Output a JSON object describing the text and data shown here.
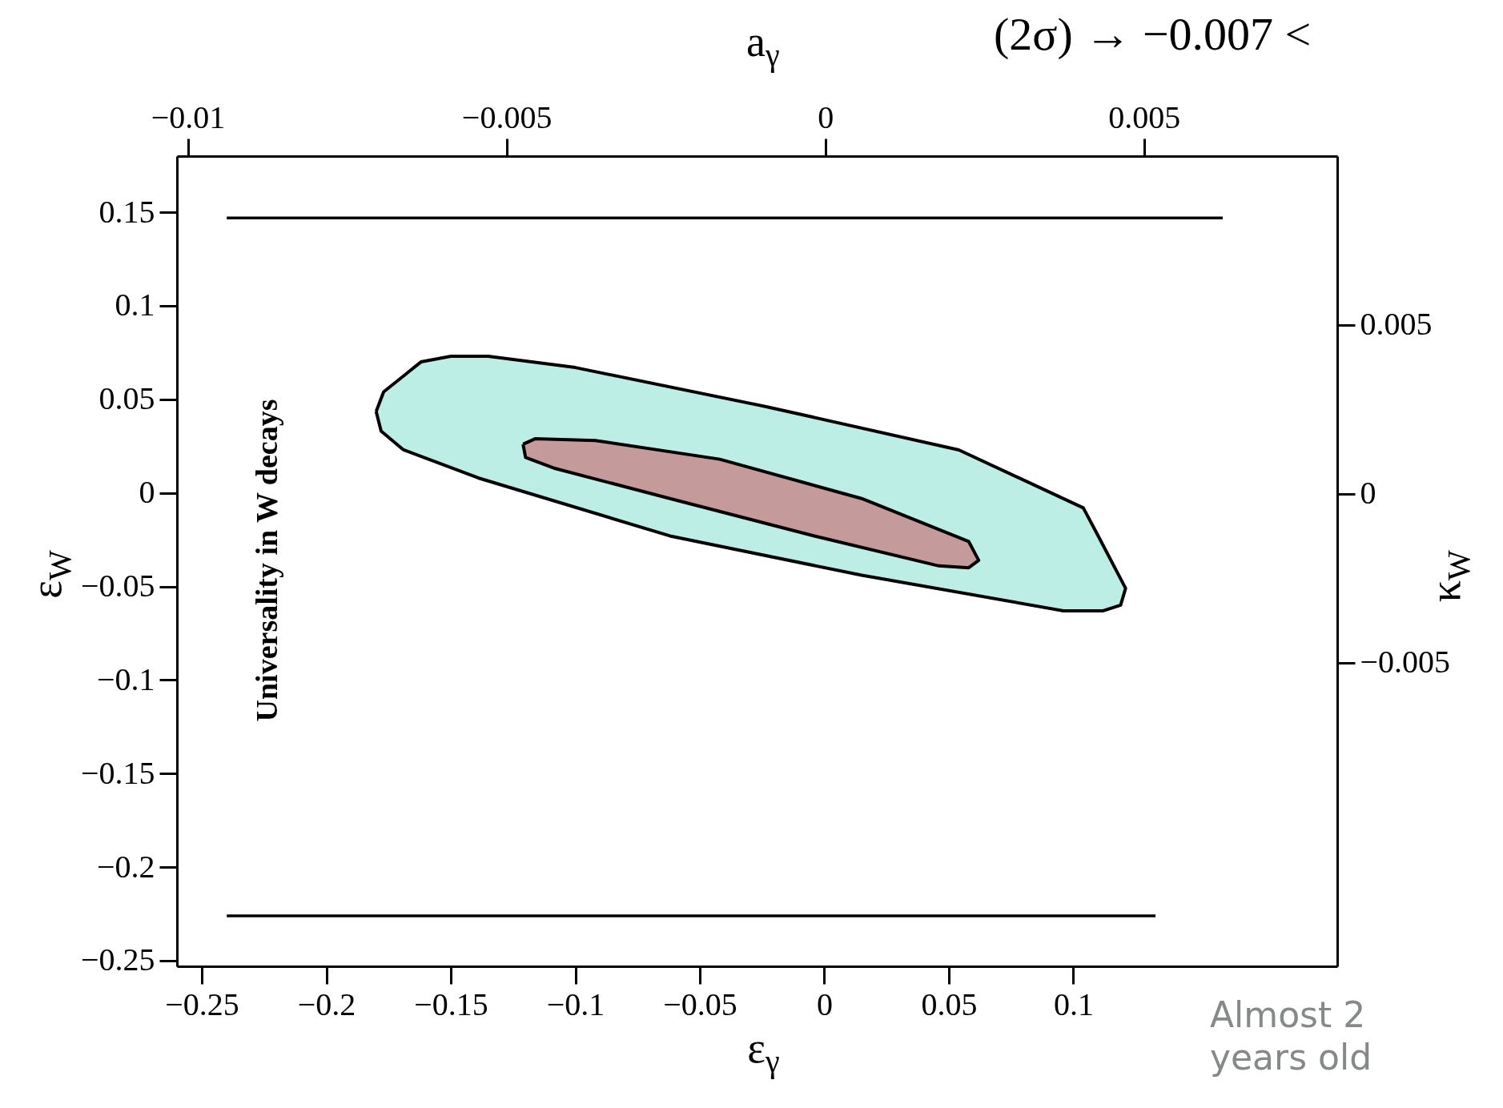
{
  "chart_data": {
    "type": "line",
    "xlabel": "ε$_{γ}$",
    "ylabel": "ε$_{W}$",
    "x2label": "a$_{γ}$",
    "y2label": "κ$_{W}$",
    "annotations": [
      "Universality in W decays",
      "(2σ) → −0.007 <",
      "Almost 2",
      "years old"
    ],
    "xlim": [
      -0.26,
      0.206
    ],
    "ylim": [
      -0.253,
      0.18
    ],
    "x2lim": [
      -0.01017,
      0.00803
    ],
    "y2lim": [
      -0.014,
      0.01
    ],
    "xticks": [
      {
        "value": -0.25,
        "label": "−0.25"
      },
      {
        "value": -0.2,
        "label": "−0.2"
      },
      {
        "value": -0.15,
        "label": "−0.15"
      },
      {
        "value": -0.1,
        "label": "−0.1"
      },
      {
        "value": -0.05,
        "label": "−0.05"
      },
      0,
      0.05,
      0.1
    ],
    "yticks": [
      {
        "value": -0.25,
        "label": "−0.25"
      },
      {
        "value": -0.2,
        "label": "−0.2"
      },
      {
        "value": -0.15,
        "label": "−0.15"
      },
      {
        "value": -0.1,
        "label": "−0.1"
      },
      {
        "value": -0.05,
        "label": "−0.05"
      },
      0,
      0.05,
      0.1,
      0.15
    ],
    "x2ticks": [
      {
        "value": -0.01,
        "label": "−0.01"
      },
      {
        "value": -0.005,
        "label": "−0.005"
      },
      0,
      0.005
    ],
    "y2ticks": [
      {
        "value": -0.005,
        "label": "−0.005"
      },
      0,
      0.005
    ],
    "grid": false,
    "series": [
      {
        "type": "area",
        "color": "#bdeee6",
        "x": [
          -0.18,
          -0.177,
          -0.162,
          -0.15,
          -0.135,
          -0.1,
          -0.023,
          0.054,
          0.104,
          0.11,
          0.121,
          0.119,
          0.112,
          0.096,
          0.015,
          -0.062,
          -0.139,
          -0.169,
          -0.178,
          -0.18
        ],
        "values": [
          0.0435,
          0.054,
          0.07,
          0.073,
          0.073,
          0.067,
          0.046,
          0.023,
          -0.008,
          -0.023,
          -0.051,
          -0.06,
          -0.063,
          -0.063,
          -0.044,
          -0.023,
          0.008,
          0.023,
          0.033,
          0.0435
        ]
      },
      {
        "type": "area",
        "color": "#c49a9a",
        "x": [
          -0.121,
          -0.116,
          -0.092,
          -0.042,
          0.015,
          0.058,
          0.062,
          0.058,
          0.046,
          -0.004,
          -0.062,
          -0.108,
          -0.12,
          -0.121
        ],
        "values": [
          0.026,
          0.029,
          0.028,
          0.018,
          -0.003,
          -0.026,
          -0.036,
          -0.04,
          -0.039,
          -0.023,
          -0.003,
          0.013,
          0.019,
          0.026
        ]
      },
      {
        "color": "#000000",
        "x": [
          -0.24,
          0.16
        ],
        "values": [
          0.147,
          0.147
        ]
      },
      {
        "color": "#000000",
        "x": [
          -0.24,
          0.133
        ],
        "values": [
          -0.226,
          -0.226
        ]
      }
    ]
  }
}
